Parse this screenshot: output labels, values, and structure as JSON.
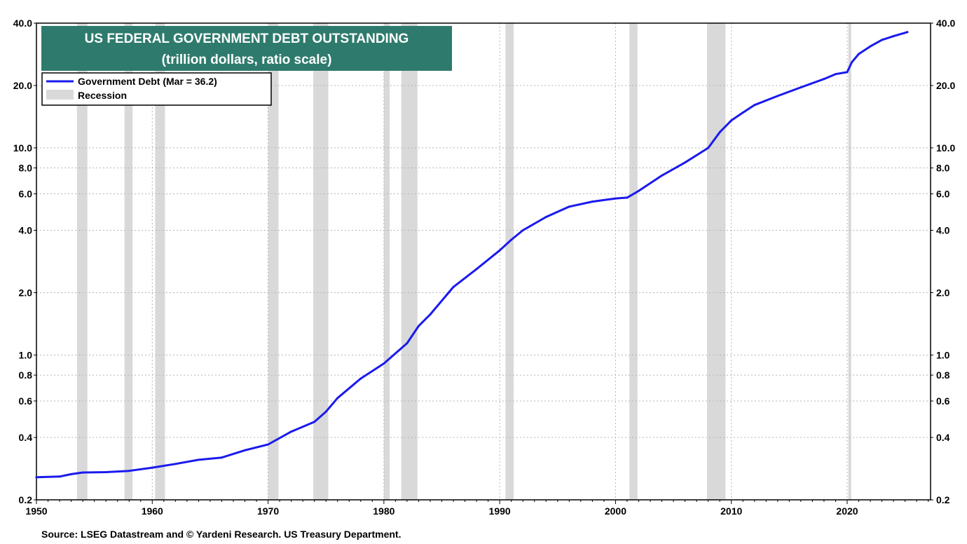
{
  "chart_data": {
    "type": "line",
    "title": "US FEDERAL GOVERNMENT DEBT OUTSTANDING",
    "subtitle": "(trillion dollars, ratio scale)",
    "yscale": "log",
    "ylim": [
      0.2,
      40.0
    ],
    "xlim": [
      1950,
      2027.2
    ],
    "y_ticks": [
      "0.2",
      "0.4",
      "0.6",
      "0.8",
      "1.0",
      "2.0",
      "4.0",
      "6.0",
      "8.0",
      "10.0",
      "20.0",
      "40.0"
    ],
    "x_ticks": [
      "1950",
      "1960",
      "1970",
      "1980",
      "1990",
      "2000",
      "2010",
      "2020"
    ],
    "grid": true,
    "legend_position": "top-left",
    "series": [
      {
        "name": "Government Debt (Mar = 36.2)",
        "color": "#1a1aee",
        "x": [
          1950,
          1952,
          1953,
          1954,
          1956,
          1958,
          1960,
          1962,
          1964,
          1966,
          1968,
          1970,
          1972,
          1974,
          1975,
          1976,
          1978,
          1980,
          1982,
          1983,
          1984,
          1986,
          1988,
          1990,
          1991,
          1992,
          1994,
          1996,
          1998,
          2000,
          2001,
          2002,
          2004,
          2006,
          2008,
          2009,
          2010,
          2011,
          2012,
          2014,
          2016,
          2018,
          2019,
          2020,
          2020.4,
          2021,
          2022,
          2023,
          2024,
          2025.2
        ],
        "values": [
          0.257,
          0.259,
          0.266,
          0.271,
          0.272,
          0.276,
          0.286,
          0.298,
          0.312,
          0.32,
          0.347,
          0.37,
          0.427,
          0.476,
          0.533,
          0.62,
          0.77,
          0.91,
          1.14,
          1.38,
          1.57,
          2.13,
          2.6,
          3.2,
          3.6,
          4.0,
          4.64,
          5.2,
          5.5,
          5.7,
          5.75,
          6.2,
          7.35,
          8.5,
          9.99,
          11.9,
          13.56,
          14.8,
          16.1,
          17.8,
          19.6,
          21.5,
          22.7,
          23.2,
          25.9,
          28.4,
          30.9,
          33.2,
          34.6,
          36.2
        ]
      }
    ],
    "recessions": [
      [
        1953.5,
        1954.4
      ],
      [
        1957.6,
        1958.3
      ],
      [
        1960.25,
        1961.1
      ],
      [
        1970.0,
        1970.9
      ],
      [
        1973.9,
        1975.2
      ],
      [
        1980.0,
        1980.5
      ],
      [
        1981.5,
        1982.9
      ],
      [
        1990.5,
        1991.2
      ],
      [
        2001.2,
        2001.9
      ],
      [
        2007.9,
        2009.5
      ],
      [
        2020.1,
        2020.35
      ]
    ],
    "legend": {
      "series_label": "Government Debt (Mar = 36.2)",
      "recession_label": "Recession"
    },
    "source": "Source: LSEG Datastream and © Yardeni Research. US Treasury Department.",
    "colors": {
      "line": "#1a1aee",
      "recession": "#d9d9d9",
      "title_bg": "#2e7b6d",
      "grid": "#b5b5b5"
    }
  }
}
